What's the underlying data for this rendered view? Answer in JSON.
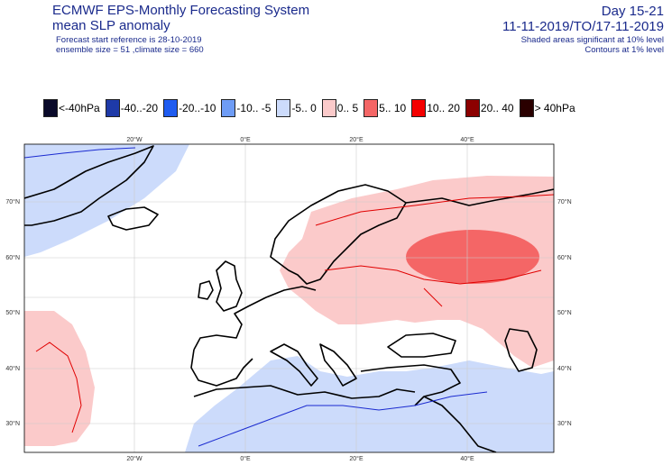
{
  "header": {
    "title_line1": "ECMWF EPS-Monthly Forecasting System",
    "title_line2": "mean SLP anomaly",
    "forecast_start": "Forecast start reference is 28-10-2019",
    "ensemble": "ensemble size = 51  ,climate size = 660",
    "day_range": "Day 15-21",
    "date_range": "11-11-2019/TO/17-11-2019",
    "shading_note": "Shaded areas significant at 10% level",
    "contour_note": "Contours at 1% level"
  },
  "legend": [
    {
      "label": "<-40hPa",
      "color": "#0a0a2a"
    },
    {
      "label": "-40..-20",
      "color": "#1e3aa8"
    },
    {
      "label": "-20..-10",
      "color": "#1f5cf0"
    },
    {
      "label": "-10.. -5",
      "color": "#6e9cf5"
    },
    {
      "label": "-5..  0",
      "color": "#ccdbfb"
    },
    {
      "label": "0..  5",
      "color": "#fbcaca"
    },
    {
      "label": "5.. 10",
      "color": "#f46666"
    },
    {
      "label": "10.. 20",
      "color": "#f40000"
    },
    {
      "label": "20.. 40",
      "color": "#8c0000"
    },
    {
      "label": "> 40hPa",
      "color": "#2a0000"
    }
  ],
  "map": {
    "lon_labels": [
      "20°W",
      "0°E",
      "20°E",
      "40°E"
    ],
    "lat_labels": [
      "70°N",
      "60°N",
      "50°N",
      "40°N",
      "30°N"
    ],
    "colors": {
      "land_outline": "#000000",
      "contour_positive": "#e00000",
      "contour_negative": "#1a2ad0",
      "grid": "#cccccc"
    }
  }
}
